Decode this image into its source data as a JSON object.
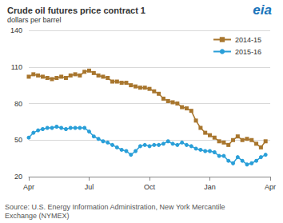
{
  "chart_data": {
    "type": "line",
    "title": "Crude oil futures price contract 1",
    "subtitle": "dollars per barrel",
    "annotations": [
      "eia",
      "Source: U.S. Energy Information Administration, New York Mercantile\nExchange (NYMEX)"
    ],
    "categories": [
      "Apr",
      null,
      null,
      null,
      null,
      null,
      null,
      null,
      null,
      null,
      null,
      null,
      null,
      "Jul",
      null,
      null,
      null,
      null,
      null,
      null,
      null,
      null,
      null,
      null,
      null,
      null,
      "Oct",
      null,
      null,
      null,
      null,
      null,
      null,
      null,
      null,
      null,
      null,
      null,
      null,
      "Jan",
      null,
      null,
      null,
      null,
      null,
      null,
      null,
      null,
      null,
      null,
      null,
      null,
      "Apr"
    ],
    "series": [
      {
        "name": "2014-15",
        "color": "#a8762e",
        "marker": "square",
        "values": [
          102,
          104,
          103,
          102,
          101,
          100,
          101,
          102,
          101,
          103,
          104,
          103,
          106,
          107,
          105,
          103,
          102,
          101,
          98,
          98,
          97,
          97,
          95,
          94,
          93,
          93,
          92,
          90,
          88,
          84,
          82,
          81,
          80,
          77,
          76,
          74,
          66,
          60,
          56,
          54,
          52,
          49,
          48,
          46,
          50,
          53,
          50,
          51,
          50,
          47,
          44,
          49,
          null
        ]
      },
      {
        "name": "2015-16",
        "color": "#2a9fd8",
        "marker": "circle",
        "values": [
          52,
          56,
          58,
          59,
          60,
          60,
          61,
          60,
          59,
          60,
          60,
          60,
          60,
          57,
          53,
          51,
          49,
          48,
          46,
          44,
          42,
          41,
          38,
          41,
          45,
          46,
          45,
          46,
          46,
          47,
          49,
          47,
          46,
          48,
          46,
          45,
          43,
          42,
          41,
          41,
          40,
          37,
          37,
          33,
          31,
          36,
          33,
          30,
          31,
          33,
          36,
          38,
          null
        ]
      }
    ],
    "ylim": [
      20,
      140
    ],
    "yticks": [
      20,
      50,
      80,
      110,
      140
    ],
    "grid": true,
    "legend": "upper right"
  }
}
